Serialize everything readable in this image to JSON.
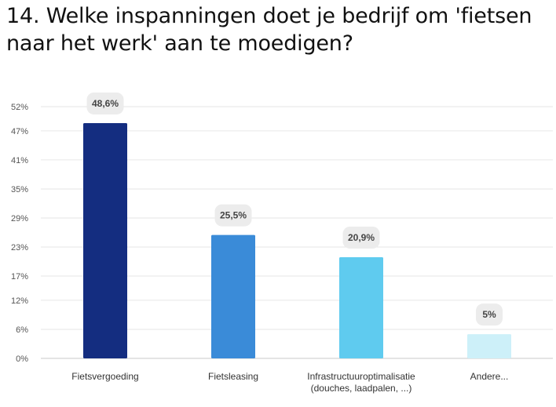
{
  "title": "14. Welke inspanningen doet je bedrijf om 'fietsen naar het werk' aan te moedigen?",
  "chart_data": {
    "type": "bar",
    "categories": [
      [
        "Fietsvergoeding"
      ],
      [
        "Fietsleasing"
      ],
      [
        "Infrastructuuroptimalisatie",
        "(douches, laadpalen, ...)"
      ],
      [
        "Andere..."
      ]
    ],
    "values": [
      48.6,
      25.5,
      20.9,
      5
    ],
    "data_labels": [
      "48,6%",
      "25,5%",
      "20,9%",
      "5%"
    ],
    "colors": [
      "#142d80",
      "#3a8bd8",
      "#5fcbef",
      "#cdf0f9"
    ],
    "yticks": [
      0,
      6,
      12,
      17,
      23,
      29,
      35,
      41,
      47,
      52
    ],
    "ytick_labels": [
      "0%",
      "6%",
      "12%",
      "17%",
      "23%",
      "29%",
      "35%",
      "41%",
      "47%",
      "52%"
    ],
    "ylim": [
      0,
      52
    ],
    "grid": true,
    "legend": "none"
  }
}
